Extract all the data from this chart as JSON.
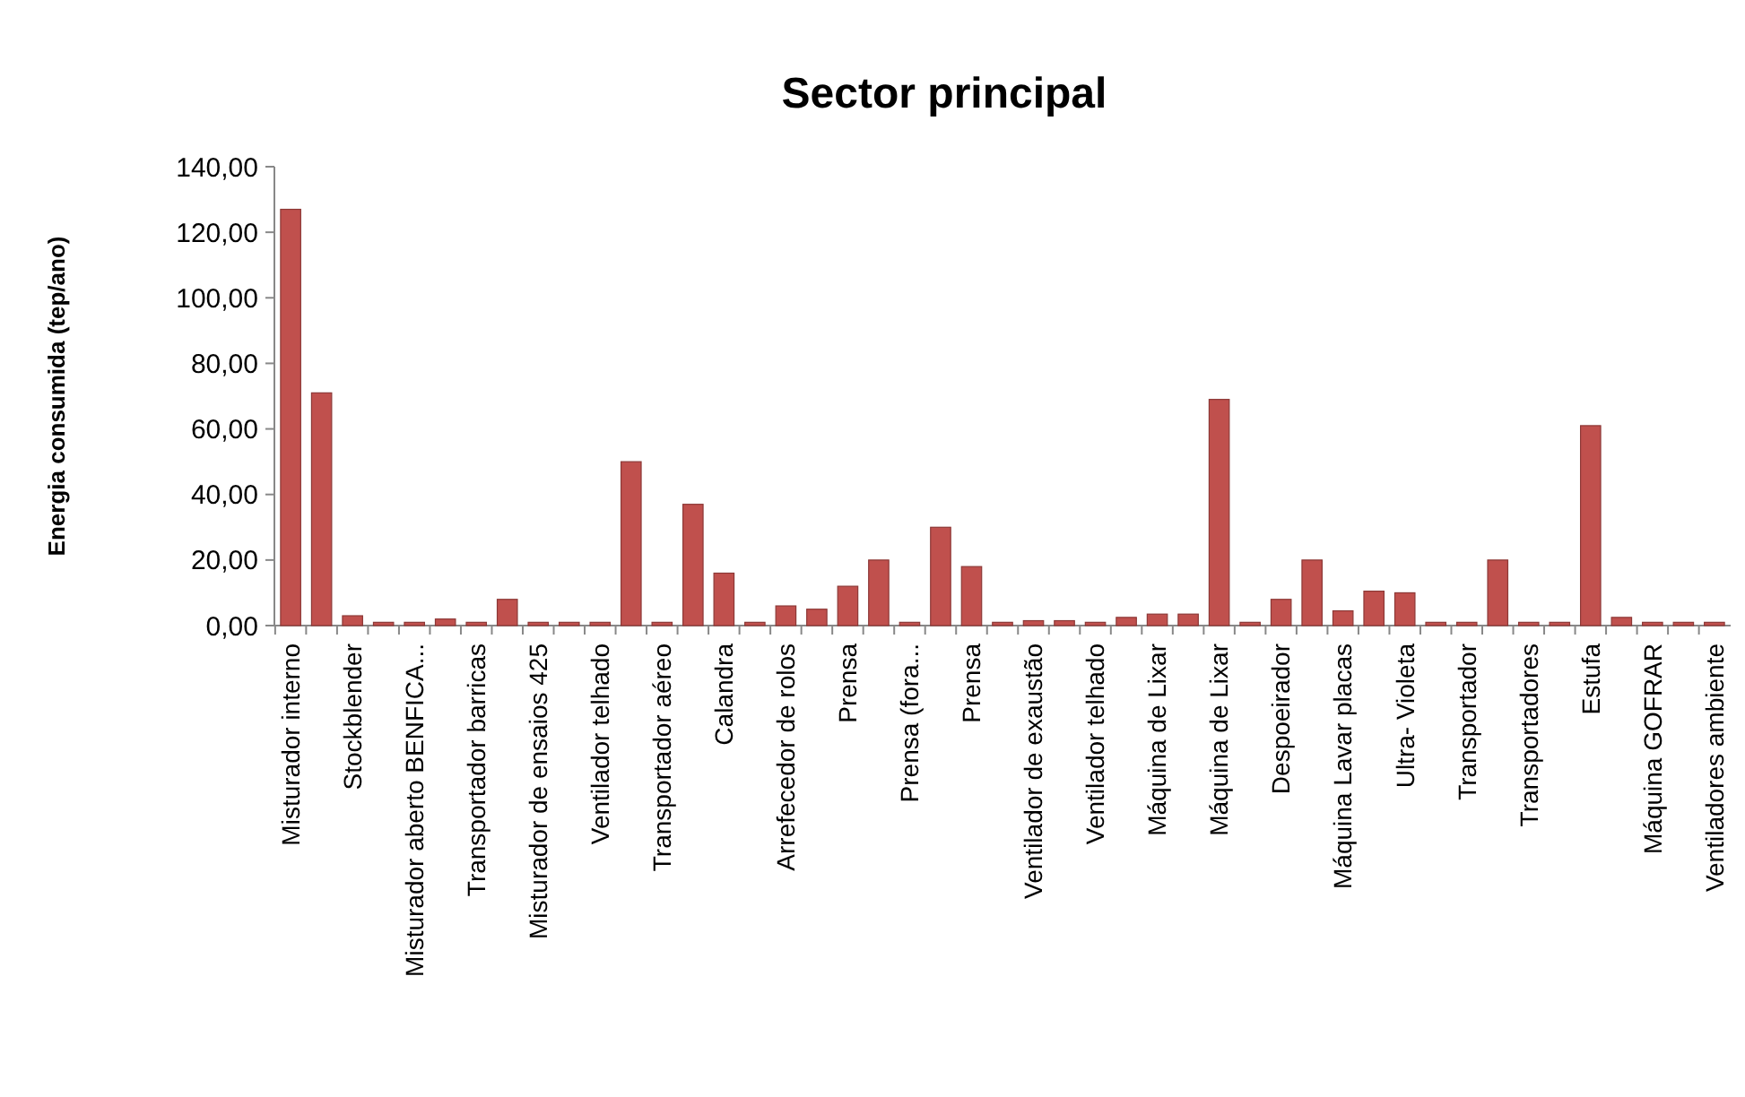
{
  "chart_data": {
    "type": "bar",
    "title": "Sector principal",
    "ylabel": "Energia consumida (tep/ano)",
    "categories": [
      "Misturador interno",
      null,
      "Stockblender",
      null,
      "Misturador aberto BENFICA...",
      null,
      "Transportador barricas",
      null,
      "Misturador de ensaios 425",
      null,
      "Ventilador  telhado",
      null,
      "Transportador aéreo",
      null,
      "Calandra",
      null,
      "Arrefecedor de rolos",
      null,
      "Prensa",
      null,
      "Prensa (fora...",
      null,
      "Prensa",
      null,
      "Ventilador  de exaustão",
      null,
      "Ventilador telhado",
      null,
      "Máquina de  Lixar",
      null,
      "Máquina de Lixar",
      null,
      "Despoeirador",
      null,
      "Máquina Lavar placas",
      null,
      "Ultra- Violeta",
      null,
      "Transportador",
      null,
      "Transportadores",
      null,
      "Estufa",
      null,
      "Máquina GOFRAR",
      null,
      "Ventiladores ambiente"
    ],
    "values": [
      127,
      71,
      3,
      1,
      1,
      2,
      1,
      8,
      1,
      1,
      1,
      50,
      1,
      37,
      16,
      1,
      6,
      5,
      12,
      20,
      1,
      30,
      18,
      1,
      1.5,
      1.5,
      1,
      2.5,
      3.5,
      3.5,
      69,
      1,
      8,
      20,
      4.5,
      10.5,
      10,
      1,
      1,
      20,
      1,
      1,
      61,
      2.5,
      1,
      1,
      1
    ],
    "color": "#c0504d",
    "ylim": [
      0,
      140
    ],
    "yticks": [
      {
        "value": 0,
        "label": "0,00"
      },
      {
        "value": 20,
        "label": "20,00"
      },
      {
        "value": 40,
        "label": "40,00"
      },
      {
        "value": 60,
        "label": "60,00"
      },
      {
        "value": 80,
        "label": "80,00"
      },
      {
        "value": 100,
        "label": "100,00"
      },
      {
        "value": 120,
        "label": "120,00"
      },
      {
        "value": 140,
        "label": "140,00"
      }
    ]
  }
}
